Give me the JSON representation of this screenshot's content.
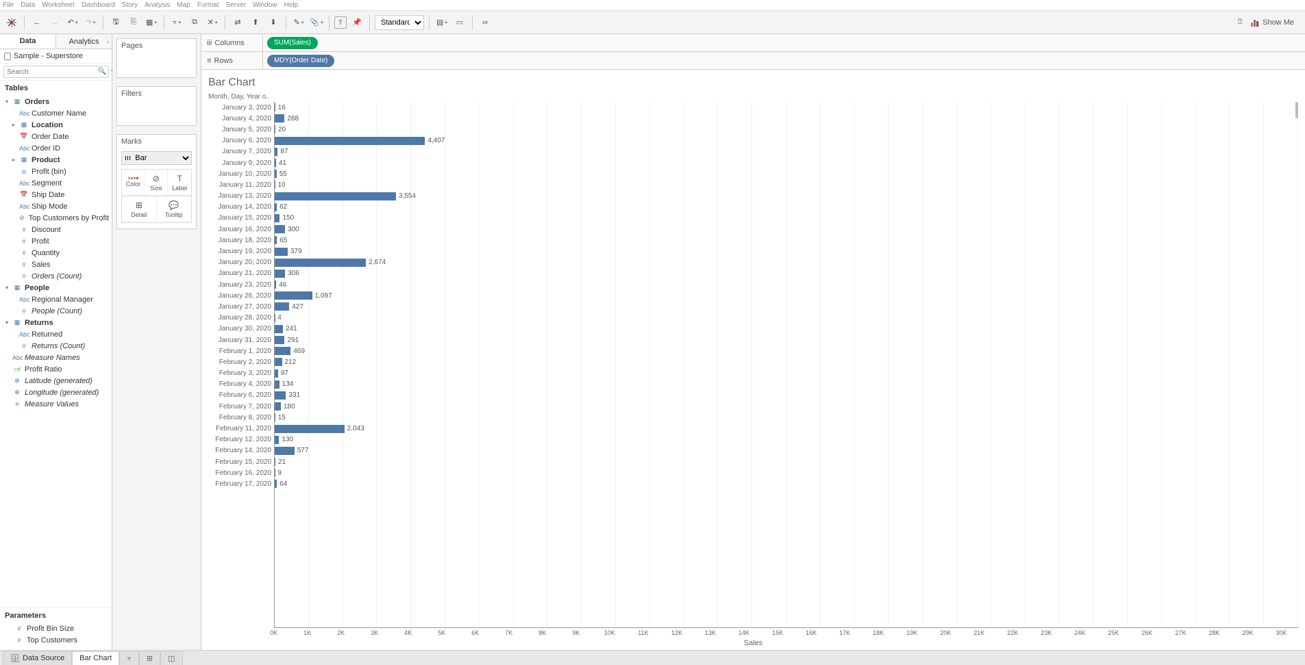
{
  "menu": [
    "File",
    "Data",
    "Worksheet",
    "Dashboard",
    "Story",
    "Analysis",
    "Map",
    "Format",
    "Server",
    "Window",
    "Help"
  ],
  "toolbar": {
    "fit_select": "Standard",
    "showme": "Show Me"
  },
  "data_pane": {
    "tabs": {
      "data": "Data",
      "analytics": "Analytics"
    },
    "datasource": "Sample - Superstore",
    "search_placeholder": "Search",
    "tables_header": "Tables",
    "tables": [
      {
        "kind": "folder",
        "open": true,
        "label": "Orders",
        "icon": "▦",
        "cls": "dim"
      },
      {
        "kind": "field",
        "label": "Customer Name",
        "icon": "Abc",
        "cls": "dim",
        "indent": 1
      },
      {
        "kind": "folder-closed",
        "label": "Location",
        "icon": "▦",
        "cls": "dim",
        "indent": 1
      },
      {
        "kind": "field",
        "label": "Order Date",
        "icon": "📅",
        "cls": "dim",
        "indent": 1
      },
      {
        "kind": "field",
        "label": "Order ID",
        "icon": "Abc",
        "cls": "dim",
        "indent": 1
      },
      {
        "kind": "folder-closed",
        "label": "Product",
        "icon": "▦",
        "cls": "dim",
        "indent": 1
      },
      {
        "kind": "field",
        "label": "Profit (bin)",
        "icon": "ılı",
        "cls": "dim",
        "indent": 1
      },
      {
        "kind": "field",
        "label": "Segment",
        "icon": "Abc",
        "cls": "dim",
        "indent": 1
      },
      {
        "kind": "field",
        "label": "Ship Date",
        "icon": "📅",
        "cls": "dim",
        "indent": 1
      },
      {
        "kind": "field",
        "label": "Ship Mode",
        "icon": "Abc",
        "cls": "dim",
        "indent": 1
      },
      {
        "kind": "field",
        "label": "Top Customers by Profit",
        "icon": "⊘",
        "cls": "dim",
        "indent": 1
      },
      {
        "kind": "field",
        "label": "Discount",
        "icon": "#",
        "cls": "meas",
        "indent": 1
      },
      {
        "kind": "field",
        "label": "Profit",
        "icon": "#",
        "cls": "meas",
        "indent": 1
      },
      {
        "kind": "field",
        "label": "Quantity",
        "icon": "#",
        "cls": "meas",
        "indent": 1
      },
      {
        "kind": "field",
        "label": "Sales",
        "icon": "#",
        "cls": "meas",
        "indent": 1
      },
      {
        "kind": "field",
        "label": "Orders (Count)",
        "icon": "#",
        "cls": "meas",
        "indent": 1,
        "ital": true
      },
      {
        "kind": "folder",
        "open": true,
        "label": "People",
        "icon": "▦",
        "cls": "dim"
      },
      {
        "kind": "field",
        "label": "Regional Manager",
        "icon": "Abc",
        "cls": "dim",
        "indent": 1
      },
      {
        "kind": "field",
        "label": "People (Count)",
        "icon": "#",
        "cls": "meas",
        "indent": 1,
        "ital": true
      },
      {
        "kind": "folder",
        "open": true,
        "label": "Returns",
        "icon": "▦",
        "cls": "dim"
      },
      {
        "kind": "field",
        "label": "Returned",
        "icon": "Abc",
        "cls": "dim",
        "indent": 1
      },
      {
        "kind": "field",
        "label": "Returns (Count)",
        "icon": "#",
        "cls": "meas",
        "indent": 1,
        "ital": true
      },
      {
        "kind": "field",
        "label": "Measure Names",
        "icon": "Abc",
        "cls": "dim",
        "ital": true
      },
      {
        "kind": "field",
        "label": "Profit Ratio",
        "icon": "=#",
        "cls": "meas"
      },
      {
        "kind": "field",
        "label": "Latitude (generated)",
        "icon": "⊕",
        "cls": "geo",
        "ital": true
      },
      {
        "kind": "field",
        "label": "Longitude (generated)",
        "icon": "⊕",
        "cls": "geo",
        "ital": true
      },
      {
        "kind": "field",
        "label": "Measure Values",
        "icon": "#",
        "cls": "meas",
        "ital": true
      }
    ],
    "parameters_header": "Parameters",
    "parameters": [
      {
        "label": "Profit Bin Size",
        "icon": "#",
        "cls": "meas"
      },
      {
        "label": "Top Customers",
        "icon": "#",
        "cls": "meas"
      }
    ]
  },
  "cards": {
    "pages": "Pages",
    "filters": "Filters",
    "marks": "Marks",
    "mark_type": "Bar",
    "cells": {
      "color": "Color",
      "size": "Size",
      "label": "Label",
      "detail": "Detail",
      "tooltip": "Tooltip"
    }
  },
  "shelves": {
    "columns": "Columns",
    "rows": "Rows",
    "col_pill": "SUM(Sales)",
    "row_pill": "MDY(Order Date)"
  },
  "viz": {
    "title": "Bar Chart",
    "row_header": "Month, Day, Year o..",
    "x_label": "Sales",
    "bar_color": "#4e79a7",
    "axis_color": "#999999",
    "grid_color": "#f0f0f0",
    "text_color": "#666666",
    "x_ticks": [
      "0K",
      "1K",
      "2K",
      "3K",
      "4K",
      "5K",
      "6K",
      "7K",
      "8K",
      "9K",
      "10K",
      "11K",
      "12K",
      "13K",
      "14K",
      "15K",
      "16K",
      "17K",
      "18K",
      "19K",
      "20K",
      "21K",
      "22K",
      "23K",
      "24K",
      "25K",
      "26K",
      "27K",
      "28K",
      "29K",
      "30K"
    ],
    "x_max": 30000,
    "rows": [
      {
        "d": "January 3, 2020",
        "v": 16,
        "t": "16"
      },
      {
        "d": "January 4, 2020",
        "v": 288,
        "t": "288"
      },
      {
        "d": "January 5, 2020",
        "v": 20,
        "t": "20"
      },
      {
        "d": "January 6, 2020",
        "v": 4407,
        "t": "4,407"
      },
      {
        "d": "January 7, 2020",
        "v": 87,
        "t": "87"
      },
      {
        "d": "January 9, 2020",
        "v": 41,
        "t": "41"
      },
      {
        "d": "January 10, 2020",
        "v": 55,
        "t": "55"
      },
      {
        "d": "January 11, 2020",
        "v": 10,
        "t": "10"
      },
      {
        "d": "January 13, 2020",
        "v": 3554,
        "t": "3,554"
      },
      {
        "d": "January 14, 2020",
        "v": 62,
        "t": "62"
      },
      {
        "d": "January 15, 2020",
        "v": 150,
        "t": "150"
      },
      {
        "d": "January 16, 2020",
        "v": 300,
        "t": "300"
      },
      {
        "d": "January 18, 2020",
        "v": 65,
        "t": "65"
      },
      {
        "d": "January 19, 2020",
        "v": 379,
        "t": "379"
      },
      {
        "d": "January 20, 2020",
        "v": 2674,
        "t": "2,674"
      },
      {
        "d": "January 21, 2020",
        "v": 306,
        "t": "306"
      },
      {
        "d": "January 23, 2020",
        "v": 46,
        "t": "46"
      },
      {
        "d": "January 26, 2020",
        "v": 1097,
        "t": "1,097"
      },
      {
        "d": "January 27, 2020",
        "v": 427,
        "t": "427"
      },
      {
        "d": "January 28, 2020",
        "v": 4,
        "t": "4"
      },
      {
        "d": "January 30, 2020",
        "v": 241,
        "t": "241"
      },
      {
        "d": "January 31, 2020",
        "v": 291,
        "t": "291"
      },
      {
        "d": "February 1, 2020",
        "v": 469,
        "t": "469"
      },
      {
        "d": "February 2, 2020",
        "v": 212,
        "t": "212"
      },
      {
        "d": "February 3, 2020",
        "v": 97,
        "t": "97"
      },
      {
        "d": "February 4, 2020",
        "v": 134,
        "t": "134"
      },
      {
        "d": "February 6, 2020",
        "v": 331,
        "t": "331"
      },
      {
        "d": "February 7, 2020",
        "v": 180,
        "t": "180"
      },
      {
        "d": "February 8, 2020",
        "v": 15,
        "t": "15"
      },
      {
        "d": "February 11, 2020",
        "v": 2043,
        "t": "2,043"
      },
      {
        "d": "February 12, 2020",
        "v": 130,
        "t": "130"
      },
      {
        "d": "February 14, 2020",
        "v": 577,
        "t": "577"
      },
      {
        "d": "February 15, 2020",
        "v": 21,
        "t": "21"
      },
      {
        "d": "February 16, 2020",
        "v": 9,
        "t": "9"
      },
      {
        "d": "February 17, 2020",
        "v": 64,
        "t": "64"
      }
    ]
  },
  "bottom": {
    "data_source": "Data Source",
    "sheet": "Bar Chart"
  }
}
